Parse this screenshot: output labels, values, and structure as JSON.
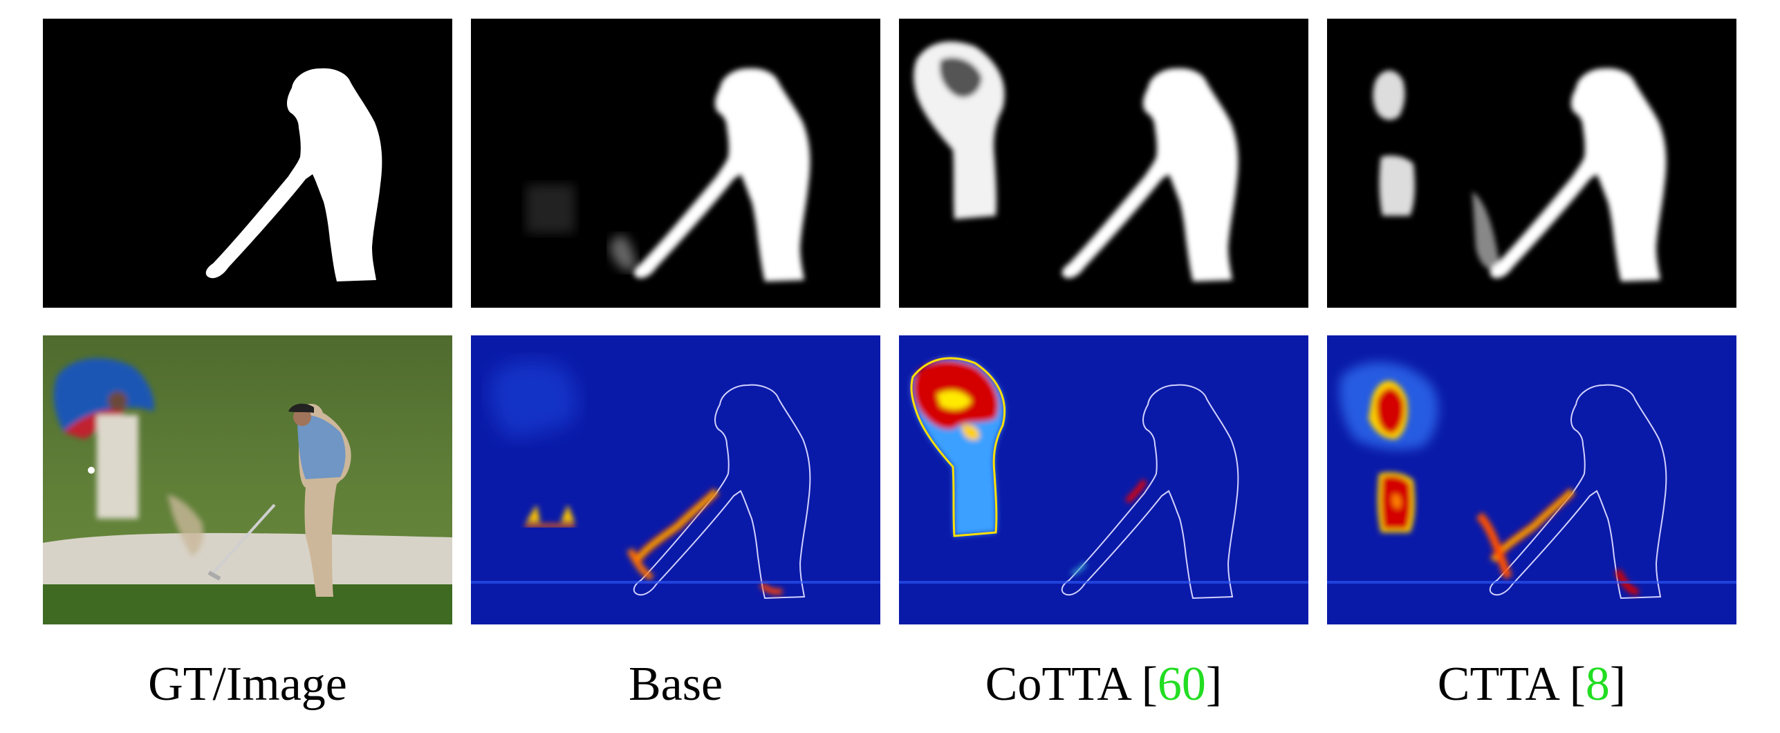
{
  "columns": [
    {
      "caption": "GT/Image",
      "cite": ""
    },
    {
      "caption": "Base",
      "cite": ""
    },
    {
      "caption": "CoTTA",
      "cite": "60"
    },
    {
      "caption": "CTTA",
      "cite": "8"
    }
  ],
  "rows": [
    "mask",
    "error-map"
  ],
  "colors": {
    "mask_background": "#000000",
    "mask_foreground": "#ffffff",
    "heatmap_background": "#0a1aa8",
    "heatmap_hot": "#d40000",
    "citation": "#22dd22"
  }
}
